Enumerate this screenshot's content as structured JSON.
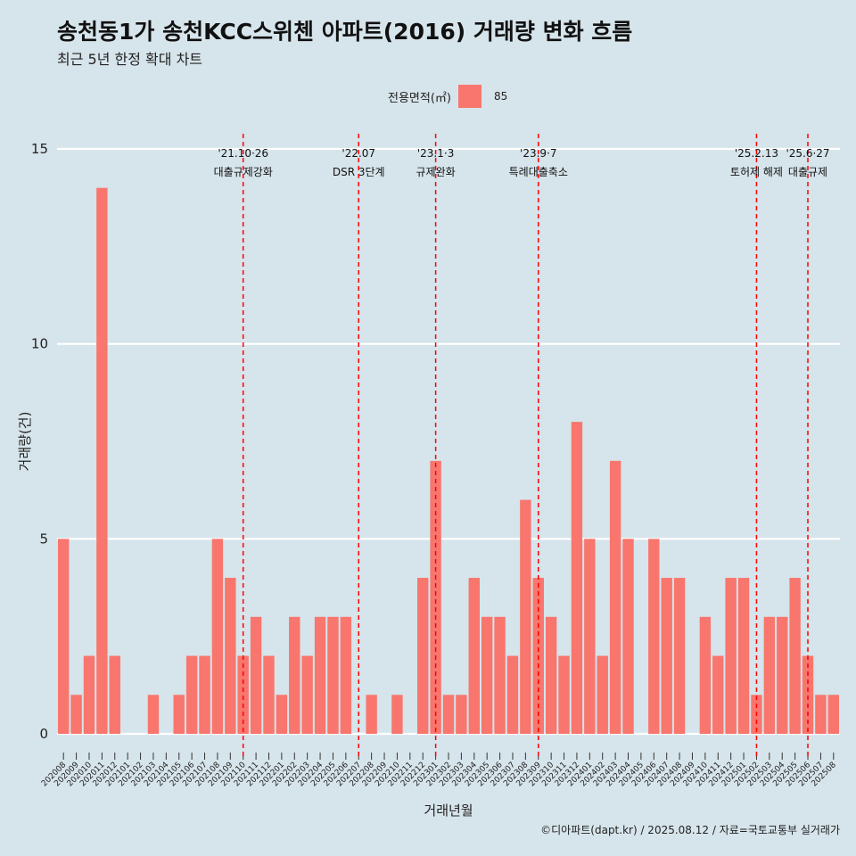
{
  "title": "송천동1가 송천KCC스위첸 아파트(2016) 거래량 변화 흐름",
  "subtitle": "최근 5년 한정 확대 차트",
  "caption": "©디아파트(dapt.kr) / 2025.08.12 / 자료=국토교통부 실거래가",
  "legend": {
    "title": "전용면적(㎡)",
    "items": [
      {
        "label": "85",
        "color": "#f8766d"
      }
    ]
  },
  "chart_data": {
    "type": "bar",
    "xlabel": "거래년월",
    "ylabel": "거래량(건)",
    "ylim": [
      0,
      15
    ],
    "yticks": [
      0,
      5,
      10,
      15
    ],
    "grid": true,
    "legend_position": "top",
    "bar_color": "#f8766d",
    "categories": [
      "202008",
      "202009",
      "202010",
      "202011",
      "202012",
      "202101",
      "202102",
      "202103",
      "202104",
      "202105",
      "202106",
      "202107",
      "202108",
      "202109",
      "202110",
      "202111",
      "202112",
      "202201",
      "202202",
      "202203",
      "202204",
      "202205",
      "202206",
      "202207",
      "202208",
      "202209",
      "202210",
      "202211",
      "202212",
      "202301",
      "202302",
      "202303",
      "202304",
      "202305",
      "202306",
      "202307",
      "202308",
      "202309",
      "202310",
      "202311",
      "202312",
      "202401",
      "202402",
      "202403",
      "202404",
      "202405",
      "202406",
      "202407",
      "202408",
      "202409",
      "202410",
      "202411",
      "202412",
      "202501",
      "202502",
      "202503",
      "202504",
      "202505",
      "202506",
      "202507",
      "202508"
    ],
    "series": [
      {
        "name": "85",
        "values": [
          5,
          1,
          2,
          14,
          2,
          0,
          0,
          1,
          0,
          1,
          2,
          2,
          5,
          4,
          2,
          3,
          2,
          1,
          3,
          2,
          3,
          3,
          3,
          0,
          1,
          0,
          1,
          0,
          4,
          7,
          1,
          1,
          4,
          3,
          3,
          2,
          6,
          4,
          3,
          2,
          8,
          5,
          2,
          7,
          5,
          0,
          5,
          4,
          4,
          0,
          3,
          2,
          4,
          4,
          1,
          3,
          3,
          4,
          2,
          1,
          1
        ]
      }
    ],
    "annotations": [
      {
        "category": "202110",
        "date": "'21.10·26",
        "label": "대출규제강화"
      },
      {
        "category": "202207",
        "date": "'22.07",
        "label": "DSR 3단계"
      },
      {
        "category": "202301",
        "date": "'23.1·3",
        "label": "규제완화"
      },
      {
        "category": "202309",
        "date": "'23.9·7",
        "label": "특례대출축소"
      },
      {
        "category": "202502",
        "date": "'25.2.13",
        "label": "토허제 해제"
      },
      {
        "category": "202506",
        "date": "'25.6·27",
        "label": "대출규제"
      }
    ]
  }
}
